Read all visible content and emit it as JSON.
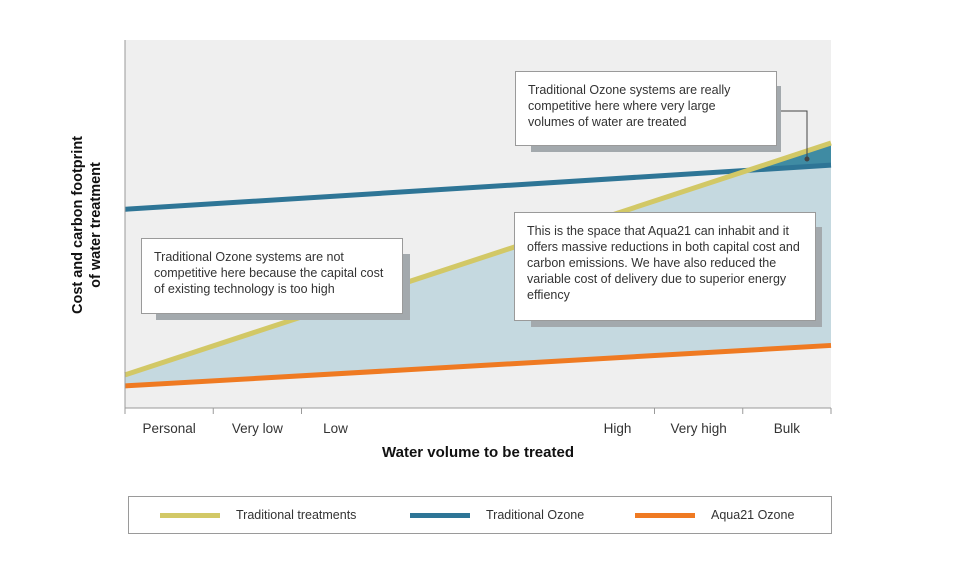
{
  "chart_data": {
    "type": "area",
    "ylabel_lines": [
      "Cost and carbon footprint",
      "of  water treatment"
    ],
    "xlabel": "Water volume to be treated",
    "tick_labels": [
      "Personal",
      "Very low",
      "Low",
      "High",
      "Very high",
      "Bulk"
    ],
    "tick_positions": [
      0,
      0.125,
      0.25,
      0.75,
      0.875,
      1.0
    ],
    "x": [
      0,
      1
    ],
    "series": [
      {
        "name": "Traditional treatments",
        "values": [
          0.09,
          0.72
        ],
        "color": "#d2c866"
      },
      {
        "name": "Traditional Ozone",
        "values": [
          0.54,
          0.66
        ],
        "color": "#2e7596"
      },
      {
        "name": "Aqua21 Ozone",
        "values": [
          0.06,
          0.17
        ],
        "color": "#ef7a22"
      }
    ],
    "shaded_region": {
      "lower": "Aqua21 Ozone",
      "upper": "min(Traditional treatments, Traditional Ozone)",
      "color": "#c5d9e0"
    },
    "ylim": [
      0,
      1
    ],
    "grid": false,
    "annotations": [
      {
        "text": "Traditional Ozone systems are not competitive here because the capital cost of existing technology is too high"
      },
      {
        "text": "Traditional Ozone systems are really competitive here where very large volumes of water are treated"
      },
      {
        "text": "This is the space that Aqua21 can inhabit and it offers massive reductions in both capital cost and carbon emissions. We have also reduced the variable cost of delivery due to superior energy effiency"
      }
    ],
    "legend_position": "bottom"
  }
}
